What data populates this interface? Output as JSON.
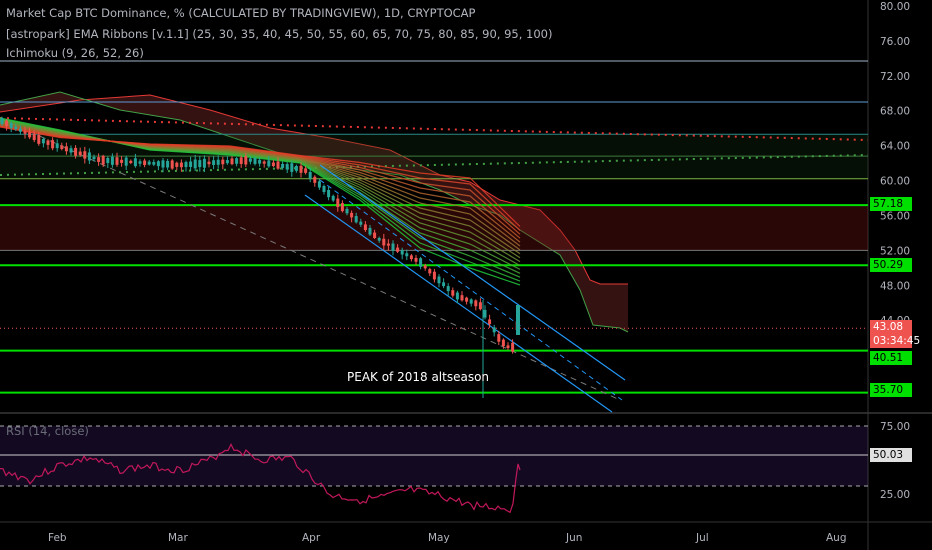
{
  "legend": {
    "main": "Market Cap BTC Dominance, % (CALCULATED BY TRADINGVIEW), 1D, CRYPTOCAP",
    "ema": "[astropark] EMA Ribbons [v.1.1] (25, 30, 35, 40, 45, 50, 55, 60, 65, 70, 75, 80, 85, 90, 95, 100)",
    "ichimoku": "Ichimoku (9, 26, 52, 26)",
    "rsi": "RSI (14, close)"
  },
  "price_axis": [
    "80.00",
    "76.00",
    "72.00",
    "68.00",
    "64.00",
    "60.00",
    "56.00",
    "52.00",
    "48.00",
    "44.00",
    "40.00",
    "36.00"
  ],
  "rsi_axis": [
    "75.00",
    "25.00"
  ],
  "time_axis": [
    "Feb",
    "Mar",
    "Apr",
    "May",
    "Jun",
    "Jul",
    "Aug"
  ],
  "level_tags": [
    "57.18",
    "50.29",
    "40.51",
    "35.70"
  ],
  "last_price": "43.08",
  "countdown": "03:34:45",
  "rsi_value": "50.03",
  "annotation": "PEAK of 2018 altseason",
  "colors": {
    "level_green": "#00e000",
    "level_blue": "#5d9bd5",
    "up_candle": "#26a69a",
    "down_candle": "#ef5350",
    "rsi_line": "#c2185b",
    "channel": "#2196f3"
  }
}
